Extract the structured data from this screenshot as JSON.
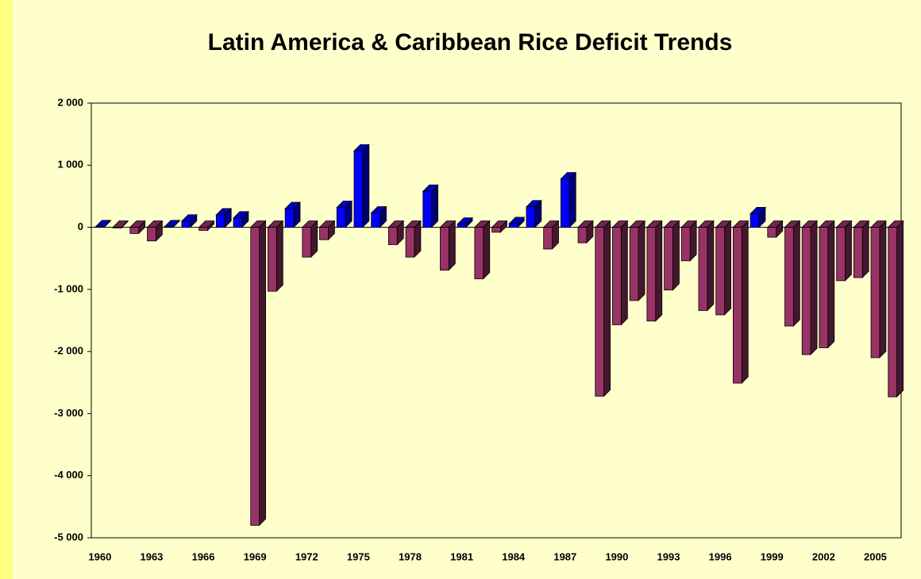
{
  "chart_data": {
    "type": "bar3d",
    "title": "Latin America & Caribbean Rice Deficit Trends",
    "categories": [
      "1960",
      null,
      null,
      "1963",
      null,
      null,
      "1966",
      null,
      null,
      "1969",
      null,
      null,
      "1972",
      null,
      null,
      "1975",
      null,
      null,
      "1978",
      null,
      null,
      "1981",
      null,
      null,
      "1984",
      null,
      null,
      "1987",
      null,
      null,
      "1990",
      null,
      null,
      "1993",
      null,
      null,
      "1996",
      null,
      null,
      "1999",
      null,
      null,
      "2002",
      null,
      null,
      "2005",
      null
    ],
    "values": [
      10,
      -10,
      -100,
      -220,
      10,
      100,
      -50,
      200,
      150,
      -4800,
      -1030,
      300,
      -480,
      -200,
      320,
      1230,
      230,
      -280,
      -480,
      580,
      -690,
      50,
      -830,
      -80,
      60,
      330,
      -350,
      780,
      -250,
      -2720,
      -1570,
      -1180,
      -1510,
      -1010,
      -540,
      -1340,
      -1410,
      -2510,
      220,
      -160,
      -1590,
      -2050,
      -1940,
      -860,
      -810,
      -2100,
      -2730
    ],
    "positive_color": "#0000ff",
    "negative_color": "#993366",
    "ylim": [
      -5000,
      2000
    ],
    "yticks": [
      {
        "value": -5000,
        "label": "-5 000"
      },
      {
        "value": -4000,
        "label": "-4 000"
      },
      {
        "value": -3000,
        "label": "-3 000"
      },
      {
        "value": -2000,
        "label": "-2 000"
      },
      {
        "value": -1000,
        "label": "-1 000"
      },
      0,
      {
        "value": 1000,
        "label": "1 000"
      },
      {
        "value": 2000,
        "label": "2 000"
      }
    ],
    "grid": false
  }
}
